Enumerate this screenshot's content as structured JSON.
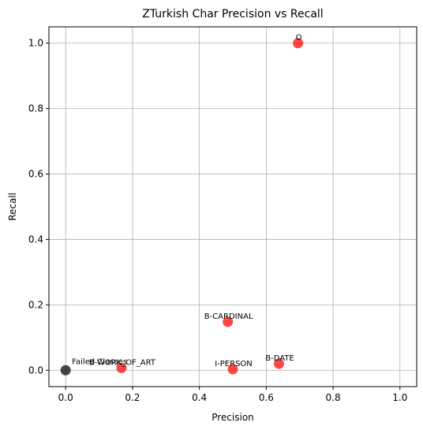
{
  "chart_data": {
    "type": "scatter",
    "title": "ZTurkish Char Precision vs Recall",
    "xlabel": "Precision",
    "ylabel": "Recall",
    "xlim": [
      -0.05,
      1.05
    ],
    "ylim": [
      -0.05,
      1.05
    ],
    "xticks": [
      "0.0",
      "0.2",
      "0.4",
      "0.6",
      "0.8",
      "1.0"
    ],
    "yticks": [
      "0.0",
      "0.2",
      "0.4",
      "0.6",
      "0.8",
      "1.0"
    ],
    "grid": true,
    "points": [
      {
        "label": "O",
        "x": 0.695,
        "y": 1.0,
        "color": "#ff0000"
      },
      {
        "label": "B-CARDINAL",
        "x": 0.485,
        "y": 0.148,
        "color": "#ff0000"
      },
      {
        "label": "B-DATE",
        "x": 0.638,
        "y": 0.02,
        "color": "#ff0000"
      },
      {
        "label": "I-PERSON",
        "x": 0.5,
        "y": 0.003,
        "color": "#ff0000"
      },
      {
        "label": "B-WORK_OF_ART",
        "x": 0.167,
        "y": 0.007,
        "color": "#ff0000"
      },
      {
        "label": "Failed Classes",
        "x": 0.0,
        "y": 0.0,
        "color": "#000000"
      }
    ]
  }
}
